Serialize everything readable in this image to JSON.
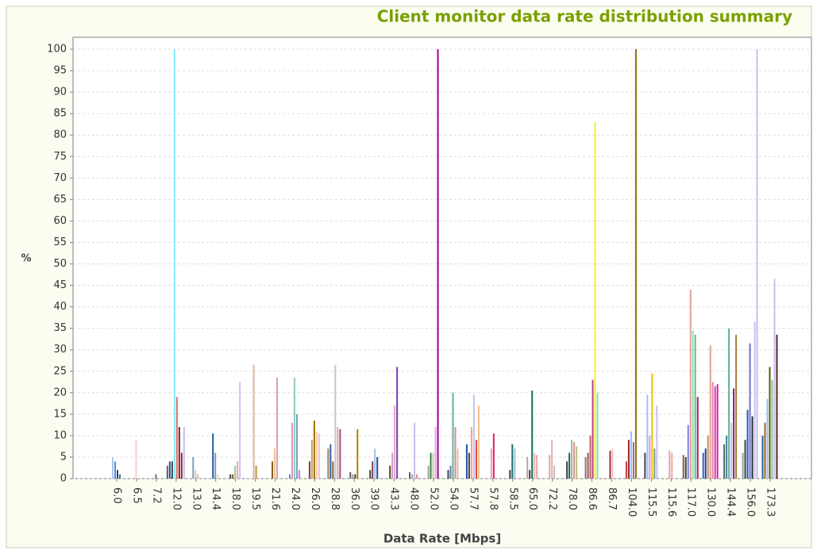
{
  "chart_data": {
    "type": "bar",
    "title": "Client monitor data rate distribution summary",
    "x_label": "Data Rate [Mbps]",
    "y_label": "%",
    "categories": [
      "6.0",
      "6.5",
      "7.2",
      "12.0",
      "13.0",
      "14.4",
      "18.0",
      "19.5",
      "21.6",
      "24.0",
      "26.0",
      "28.8",
      "36.0",
      "39.0",
      "43.3",
      "48.0",
      "52.0",
      "54.0",
      "57.7",
      "57.8",
      "58.5",
      "65.0",
      "72.2",
      "78.0",
      "86.6",
      "86.7",
      "104.0",
      "115.5",
      "115.6",
      "117.0",
      "130.0",
      "144.4",
      "156.0",
      "173.3"
    ],
    "groups": [
      {
        "values": [
          5,
          4,
          2,
          1
        ],
        "colors": [
          "#a8c8f0",
          "#5a8fd0",
          "#1f3f8f",
          "#2a8a8a"
        ]
      },
      {
        "values": [
          9
        ],
        "colors": [
          "#f8d0d0"
        ]
      },
      {
        "values": [
          1
        ],
        "colors": [
          "#707070"
        ]
      },
      {
        "values": [
          3,
          4,
          4,
          100,
          19,
          12,
          6,
          12
        ],
        "colors": [
          "#606060",
          "#2050a0",
          "#404040",
          "#80f0ff",
          "#d07070",
          "#802020",
          "#a02040",
          "#c0c0f0"
        ]
      },
      {
        "values": [
          5,
          2,
          1
        ],
        "colors": [
          "#80a0c0",
          "#f0c0a0",
          "#c0c0c0"
        ]
      },
      {
        "values": [
          10.5,
          6,
          1
        ],
        "colors": [
          "#1f5fa0",
          "#9090c0",
          "#e0e0a0"
        ]
      },
      {
        "values": [
          1,
          1,
          3,
          4,
          22.5
        ],
        "colors": [
          "#404040",
          "#806040",
          "#90d090",
          "#f0a0c0",
          "#d0c0f0"
        ]
      },
      {
        "values": [
          26.5,
          3
        ],
        "colors": [
          "#e0b0a0",
          "#c09040"
        ]
      },
      {
        "values": [
          4,
          7,
          23.5
        ],
        "colors": [
          "#806020",
          "#f0c090",
          "#e0a0a0"
        ]
      },
      {
        "values": [
          1,
          13,
          23.5,
          15,
          2
        ],
        "colors": [
          "#8080c0",
          "#e090c0",
          "#90d0b0",
          "#70a0c0",
          "#c080f0"
        ]
      },
      {
        "values": [
          4,
          9,
          13.5,
          11,
          10.5
        ],
        "colors": [
          "#804020",
          "#c0a060",
          "#a07000",
          "#f0d0a0",
          "#f0c0d0"
        ]
      },
      {
        "values": [
          7,
          8,
          4,
          26.5,
          12,
          11.5
        ],
        "colors": [
          "#a08060",
          "#3060a0",
          "#806040",
          "#d0c0d0",
          "#e0b0a0",
          "#a05090"
        ]
      },
      {
        "values": [
          1.5,
          1,
          1,
          11.5
        ],
        "colors": [
          "#606060",
          "#a0a0a0",
          "#404040",
          "#b08000"
        ]
      },
      {
        "values": [
          2,
          4,
          7,
          5
        ],
        "colors": [
          "#404040",
          "#804040",
          "#a0c0f0",
          "#2050a0"
        ]
      },
      {
        "values": [
          3,
          6,
          17,
          26
        ],
        "colors": [
          "#604020",
          "#c0a0c0",
          "#f0a0c0",
          "#7040c0"
        ]
      },
      {
        "values": [
          1.5,
          1,
          13,
          1
        ],
        "colors": [
          "#606060",
          "#a0a0a0",
          "#c0c0f0",
          "#e080a0"
        ]
      },
      {
        "values": [
          3,
          6,
          6,
          12,
          100
        ],
        "colors": [
          "#a0a0a0",
          "#408040",
          "#c0d0a0",
          "#f0a0f0",
          "#a0008a"
        ]
      },
      {
        "values": [
          2,
          3,
          20,
          12,
          7
        ],
        "colors": [
          "#404060",
          "#6080a0",
          "#60b0a0",
          "#d09090",
          "#e0c0a0"
        ]
      },
      {
        "values": [
          8,
          6,
          12,
          19.5,
          9,
          17
        ],
        "colors": [
          "#2050a0",
          "#404040",
          "#f0a0a0",
          "#c0c0f0",
          "#e04040",
          "#f0c080"
        ]
      },
      {
        "values": [
          7,
          10.5
        ],
        "colors": [
          "#f0a0c0",
          "#e02060"
        ]
      },
      {
        "values": [
          2,
          8,
          7
        ],
        "colors": [
          "#404040",
          "#207060",
          "#a0c0e0"
        ]
      },
      {
        "values": [
          5,
          2,
          20.5,
          6,
          5.5
        ],
        "colors": [
          "#c0a0a0",
          "#404040",
          "#107060",
          "#e0c0c0",
          "#f0a0a0"
        ]
      },
      {
        "values": [
          5.5,
          9,
          3
        ],
        "colors": [
          "#f0a0a0",
          "#e0b0b0",
          "#c0c0c0"
        ]
      },
      {
        "values": [
          4,
          6,
          9,
          8.5,
          7.5
        ],
        "colors": [
          "#404040",
          "#206060",
          "#90c090",
          "#e09090",
          "#c0c080"
        ]
      },
      {
        "values": [
          5,
          6,
          10,
          23,
          83,
          20
        ],
        "colors": [
          "#a07070",
          "#806060",
          "#c06060",
          "#c04080",
          "#f0f040",
          "#90e090"
        ]
      },
      {
        "values": [
          6.5,
          7
        ],
        "colors": [
          "#a03030",
          "#f0c0d0"
        ]
      },
      {
        "values": [
          4,
          9,
          11,
          8.5,
          100
        ],
        "colors": [
          "#c04040",
          "#a02020",
          "#90c0f0",
          "#a060a0",
          "#907000"
        ]
      },
      {
        "values": [
          6,
          19.5,
          10,
          24.5,
          7,
          17
        ],
        "colors": [
          "#404060",
          "#a0c0f0",
          "#d0a0d0",
          "#f0c000",
          "#80a080",
          "#c0c0f0"
        ]
      },
      {
        "values": [
          6.5,
          6
        ],
        "colors": [
          "#f0a0a0",
          "#e0b0a0"
        ]
      },
      {
        "values": [
          5.5,
          5,
          12.5,
          44,
          34.5,
          33.5,
          19
        ],
        "colors": [
          "#806040",
          "#404040",
          "#8080e0",
          "#e0a0a0",
          "#90e0a0",
          "#60c090",
          "#a02060"
        ]
      },
      {
        "values": [
          6,
          7,
          10,
          31,
          22.5,
          21.5,
          22
        ],
        "colors": [
          "#4060a0",
          "#2040a0",
          "#c09060",
          "#e0a090",
          "#f080a0",
          "#c040c0",
          "#e020a0"
        ]
      },
      {
        "values": [
          8,
          10,
          35,
          13,
          21,
          33.5
        ],
        "colors": [
          "#606060",
          "#4080a0",
          "#60b090",
          "#c0c0f0",
          "#802060",
          "#a08030"
        ]
      },
      {
        "values": [
          6,
          9,
          16,
          31.5,
          14.5,
          36.5,
          100
        ],
        "colors": [
          "#a0a0a0",
          "#404040",
          "#2060c0",
          "#7070c0",
          "#203030",
          "#d0c0f0",
          "#c0c0f0"
        ]
      },
      {
        "values": [
          10,
          13,
          18.5,
          26,
          23,
          46.5,
          33.5
        ],
        "colors": [
          "#2060a0",
          "#a06020",
          "#90c0f0",
          "#506000",
          "#90c090",
          "#c0c0f0",
          "#602020"
        ]
      }
    ],
    "ylim": [
      0,
      100
    ],
    "yticks": [
      0,
      5,
      10,
      15,
      20,
      25,
      30,
      35,
      40,
      45,
      50,
      55,
      60,
      65,
      70,
      75,
      80,
      85,
      90,
      95,
      100
    ],
    "grid": true
  }
}
